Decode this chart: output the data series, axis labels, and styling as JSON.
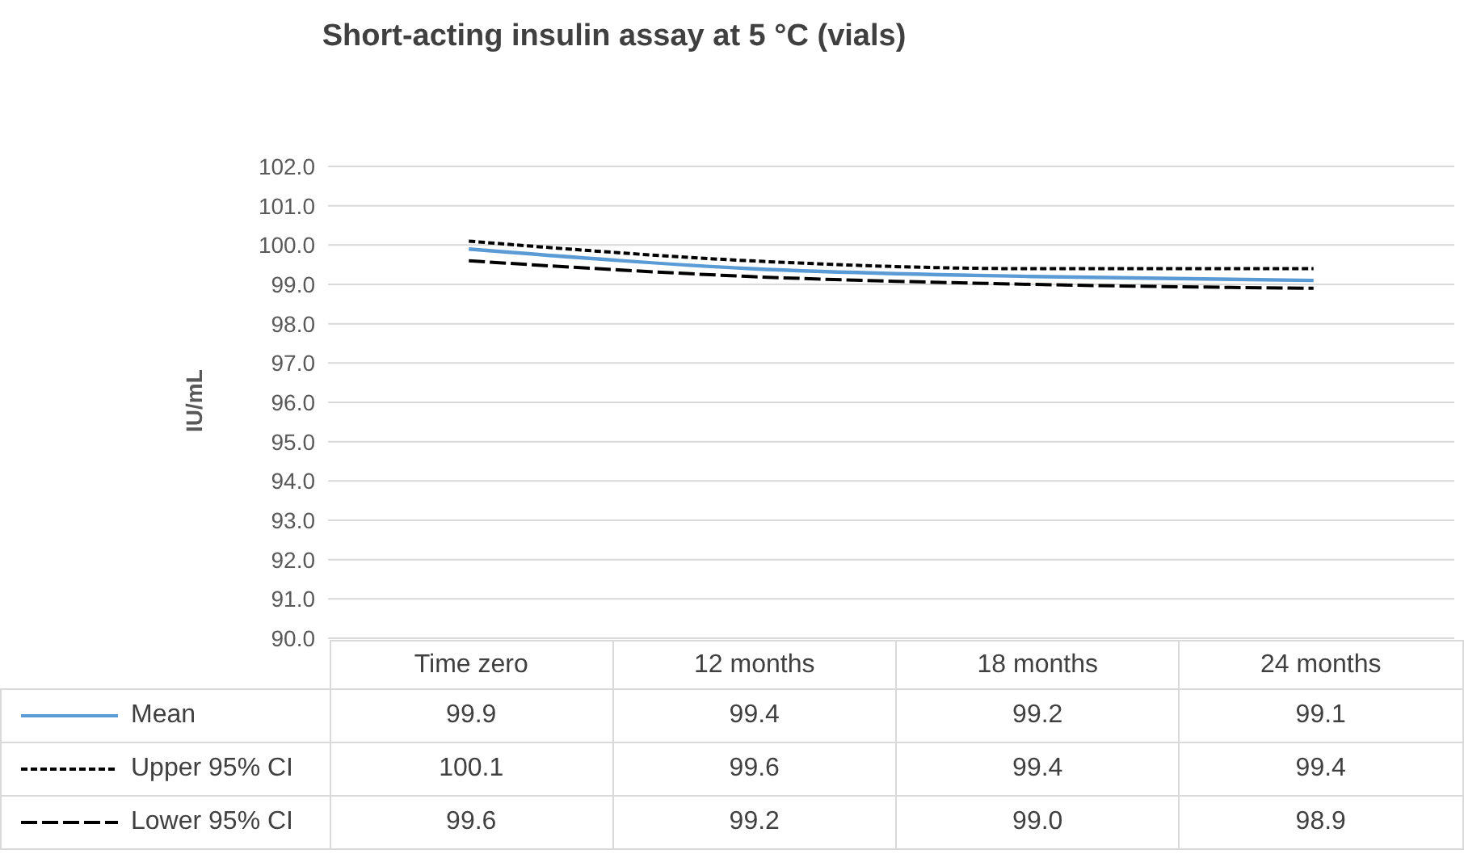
{
  "chart_data": {
    "type": "line",
    "title": "Short-acting insulin assay at 5 °C (vials)",
    "ylabel": "IU/mL",
    "categories": [
      "Time zero",
      "12 months",
      "18 months",
      "24 months"
    ],
    "series": [
      {
        "name": "Mean",
        "color": "#5b9bd5",
        "values": [
          99.9,
          99.4,
          99.2,
          99.1
        ],
        "value_labels": [
          "99.9",
          "99.4",
          "99.2",
          "99.1"
        ],
        "line_style": "solid"
      },
      {
        "name": "Upper 95% CI",
        "color": "#000000",
        "values": [
          100.1,
          99.6,
          99.4,
          99.4
        ],
        "value_labels": [
          "100.1",
          "99.6",
          "99.4",
          "99.4"
        ],
        "line_style": "dotted"
      },
      {
        "name": "Lower 95% CI",
        "color": "#000000",
        "values": [
          99.6,
          99.2,
          99.0,
          98.9
        ],
        "value_labels": [
          "99.6",
          "99.2",
          "99.0",
          "98.9"
        ],
        "line_style": "dashed"
      }
    ],
    "ylim": [
      90,
      102
    ],
    "yticks": [
      {
        "value": 90,
        "label": "90.0"
      },
      {
        "value": 91,
        "label": "91.0"
      },
      {
        "value": 92,
        "label": "92.0"
      },
      {
        "value": 93,
        "label": "93.0"
      },
      {
        "value": 94,
        "label": "94.0"
      },
      {
        "value": 95,
        "label": "95.0"
      },
      {
        "value": 96,
        "label": "96.0"
      },
      {
        "value": 97,
        "label": "97.0"
      },
      {
        "value": 98,
        "label": "98.0"
      },
      {
        "value": 99,
        "label": "99.0"
      },
      {
        "value": 100,
        "label": "100.0"
      },
      {
        "value": 101,
        "label": "101.0"
      },
      {
        "value": 102,
        "label": "102.0"
      }
    ],
    "grid": "y",
    "marker": "none",
    "legend": "bottom left"
  }
}
